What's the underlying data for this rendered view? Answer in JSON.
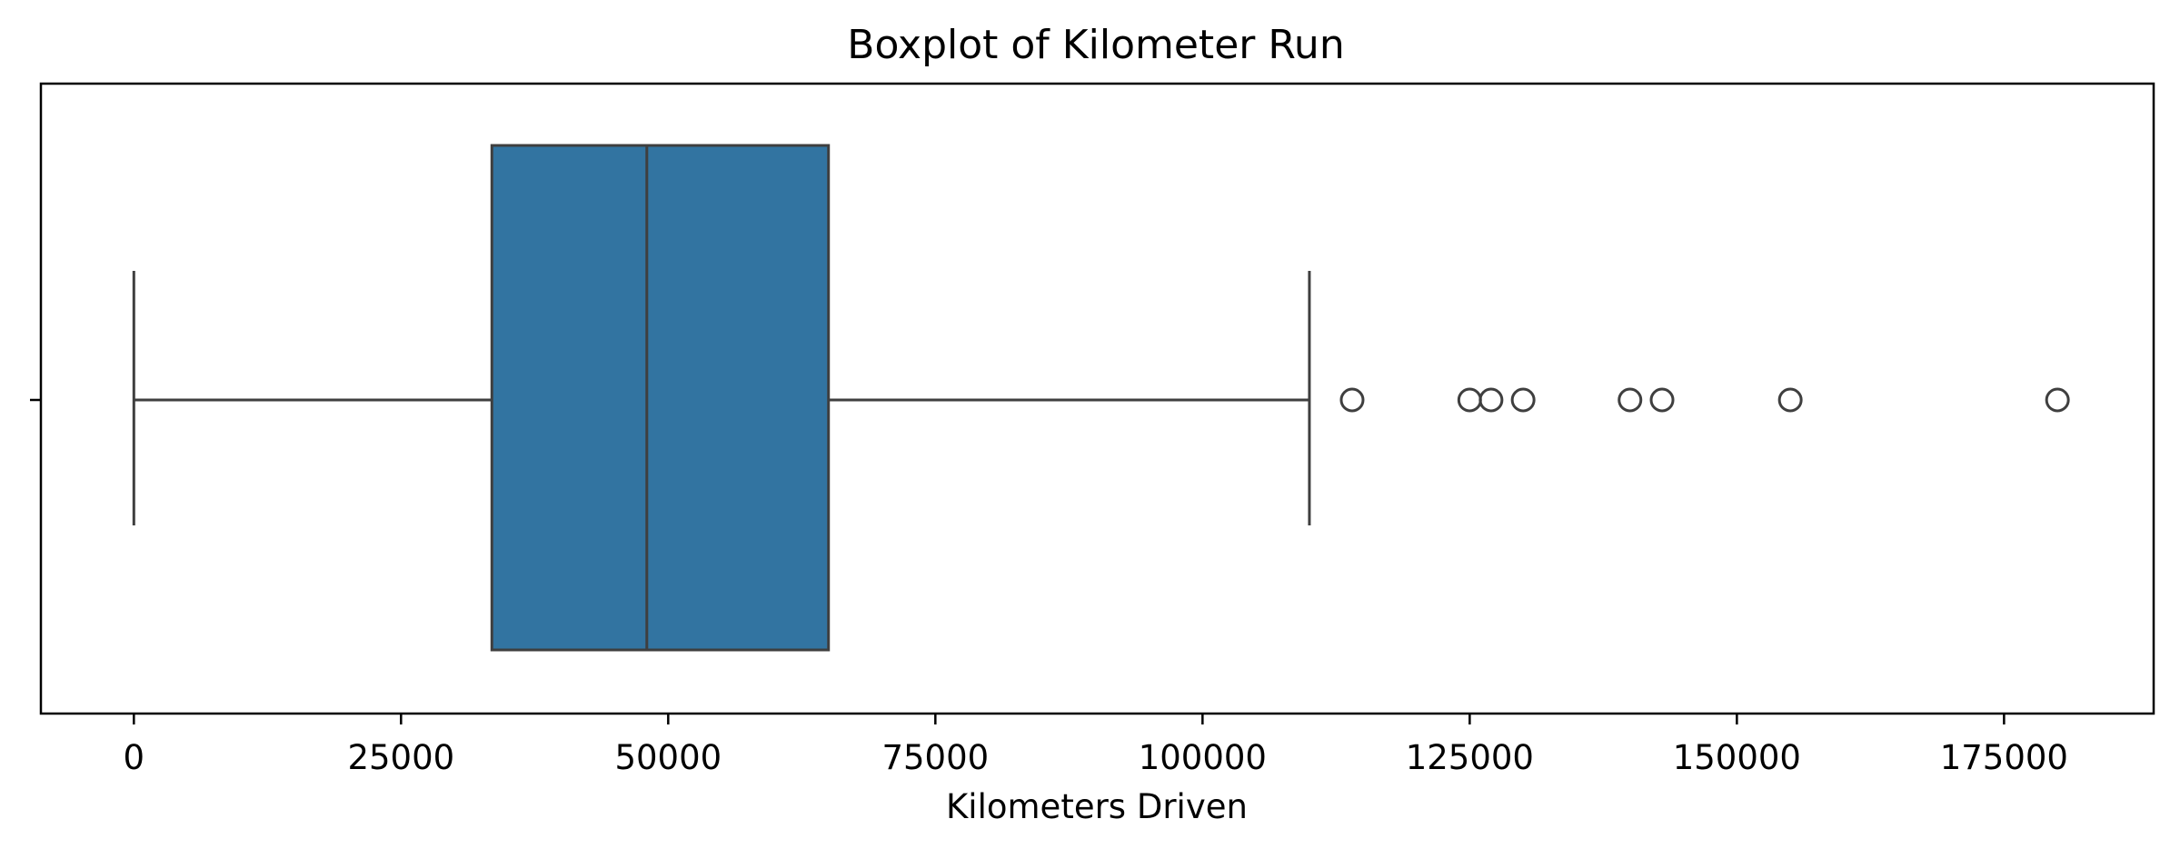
{
  "chart_data": {
    "type": "box",
    "title": "Boxplot of Kilometer Run",
    "xlabel": "Kilometers Driven",
    "ylabel": "",
    "orientation": "horizontal",
    "xlim": [
      -8700,
      189000
    ],
    "x_ticks": [
      0,
      25000,
      50000,
      75000,
      100000,
      125000,
      150000,
      175000
    ],
    "x_tick_labels": [
      "0",
      "25000",
      "50000",
      "75000",
      "100000",
      "125000",
      "150000",
      "175000"
    ],
    "grid": false,
    "legend": "none",
    "box_color": "#3274a1",
    "line_color": "#3f3f3f",
    "box": {
      "whisker_low": 0,
      "q1": 33500,
      "median": 48000,
      "q3": 65000,
      "whisker_high": 110000
    },
    "outliers": [
      114000,
      125000,
      127000,
      130000,
      140000,
      143000,
      155000,
      180000
    ]
  }
}
